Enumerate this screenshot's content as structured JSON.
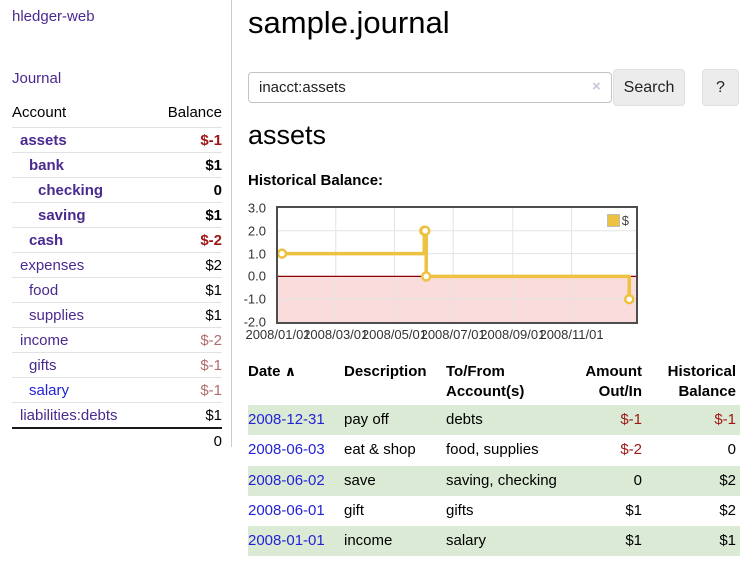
{
  "palette": {
    "link_purple": "#4b2a8f",
    "link_blue": "#2323d6",
    "negative_red": "#9e1616",
    "negative_muted_red": "#b36c6c",
    "chart_line_yellow": "#edc240",
    "chart_negative_fill": "#fbdcdc",
    "chart_zero_line": "#8b0000",
    "chart_grid": "#e3e3e3",
    "chart_border": "#4d4d4d",
    "row_stripe_green": "#dbead5",
    "button_bg": "#ececec"
  },
  "sidebar": {
    "app_title": "hledger-web",
    "nav_journal": "Journal",
    "accounts": {
      "header_account": "Account",
      "header_balance": "Balance",
      "rows": [
        {
          "name": "assets",
          "depth": 0,
          "bold": true,
          "balance": "$-1",
          "negative": "strong"
        },
        {
          "name": "bank",
          "depth": 1,
          "bold": true,
          "balance": "$1"
        },
        {
          "name": "checking",
          "depth": 2,
          "bold": true,
          "balance": "0"
        },
        {
          "name": "saving",
          "depth": 2,
          "bold": true,
          "balance": "$1"
        },
        {
          "name": "cash",
          "depth": 1,
          "bold": true,
          "balance": "$-2",
          "negative": "strong"
        },
        {
          "name": "expenses",
          "depth": 0,
          "bold": false,
          "balance": "$2"
        },
        {
          "name": "food",
          "depth": 1,
          "bold": false,
          "balance": "$1"
        },
        {
          "name": "supplies",
          "depth": 1,
          "bold": false,
          "balance": "$1"
        },
        {
          "name": "income",
          "depth": 0,
          "bold": false,
          "balance": "$-2",
          "negative": "muted"
        },
        {
          "name": "gifts",
          "depth": 1,
          "bold": false,
          "balance": "$-1",
          "negative": "muted"
        },
        {
          "name": "salary",
          "depth": 1,
          "bold": false,
          "balance": "$-1",
          "negative": "muted",
          "link_color": "blue"
        },
        {
          "name": "liabilities:debts",
          "depth": 0,
          "bold": false,
          "balance": "$1"
        }
      ],
      "total": "0"
    }
  },
  "main": {
    "title": "sample.journal",
    "search": {
      "value": "inacct:assets",
      "clear_icon": "×",
      "search_button": "Search",
      "help_button": "?"
    },
    "account_heading": "assets",
    "chart_title": "Historical Balance:"
  },
  "chart_data": {
    "type": "line",
    "step": true,
    "title": "Historical Balance:",
    "series": [
      {
        "name": "$",
        "color": "#edc240",
        "points": [
          [
            "2008-01-01",
            1
          ],
          [
            "2008-06-01",
            2
          ],
          [
            "2008-06-02",
            2
          ],
          [
            "2008-06-03",
            0
          ],
          [
            "2008-12-31",
            -1
          ]
        ]
      }
    ],
    "x_start": "2008-01-01",
    "x_domain_days": 372,
    "x_ticks": [
      {
        "date": "2008-01-01",
        "label": "2008/01/01"
      },
      {
        "date": "2008-03-01",
        "label": "2008/03/01"
      },
      {
        "date": "2008-05-01",
        "label": "2008/05/01"
      },
      {
        "date": "2008-07-01",
        "label": "2008/07/01"
      },
      {
        "date": "2008-09-01",
        "label": "2008/09/01"
      },
      {
        "date": "2008-11-01",
        "label": "2008/11/01"
      }
    ],
    "y_ticks": [
      {
        "value": 3,
        "label": "3.0"
      },
      {
        "value": 2,
        "label": "2.0"
      },
      {
        "value": 1,
        "label": "1.0"
      },
      {
        "value": 0,
        "label": "0.0"
      },
      {
        "value": -1,
        "label": "-1.0"
      },
      {
        "value": -2,
        "label": "-2.0"
      }
    ],
    "ylim": [
      -2,
      3
    ],
    "grid": true,
    "legend": {
      "label": "$",
      "position": "top-right"
    }
  },
  "register": {
    "headers": {
      "date": "Date",
      "description": "Description",
      "accounts": "To/From Account(s)",
      "amount": "Amount Out/In",
      "balance": "Historical Balance"
    },
    "sort_icon": "∧",
    "rows": [
      {
        "date": "2008-12-31",
        "description": "pay off",
        "accounts": "debts",
        "amount": "$-1",
        "amount_negative": true,
        "balance": "$-1",
        "balance_negative": true
      },
      {
        "date": "2008-06-03",
        "description": "eat & shop",
        "accounts": "food, supplies",
        "amount": "$-2",
        "amount_negative": true,
        "balance": "0",
        "balance_negative": false
      },
      {
        "date": "2008-06-02",
        "description": "save",
        "accounts": "saving, checking",
        "amount": "0",
        "amount_negative": false,
        "balance": "$2",
        "balance_negative": false
      },
      {
        "date": "2008-06-01",
        "description": "gift",
        "accounts": "gifts",
        "amount": "$1",
        "amount_negative": false,
        "balance": "$2",
        "balance_negative": false
      },
      {
        "date": "2008-01-01",
        "description": "income",
        "accounts": "salary",
        "amount": "$1",
        "amount_negative": false,
        "balance": "$1",
        "balance_negative": false
      }
    ]
  }
}
